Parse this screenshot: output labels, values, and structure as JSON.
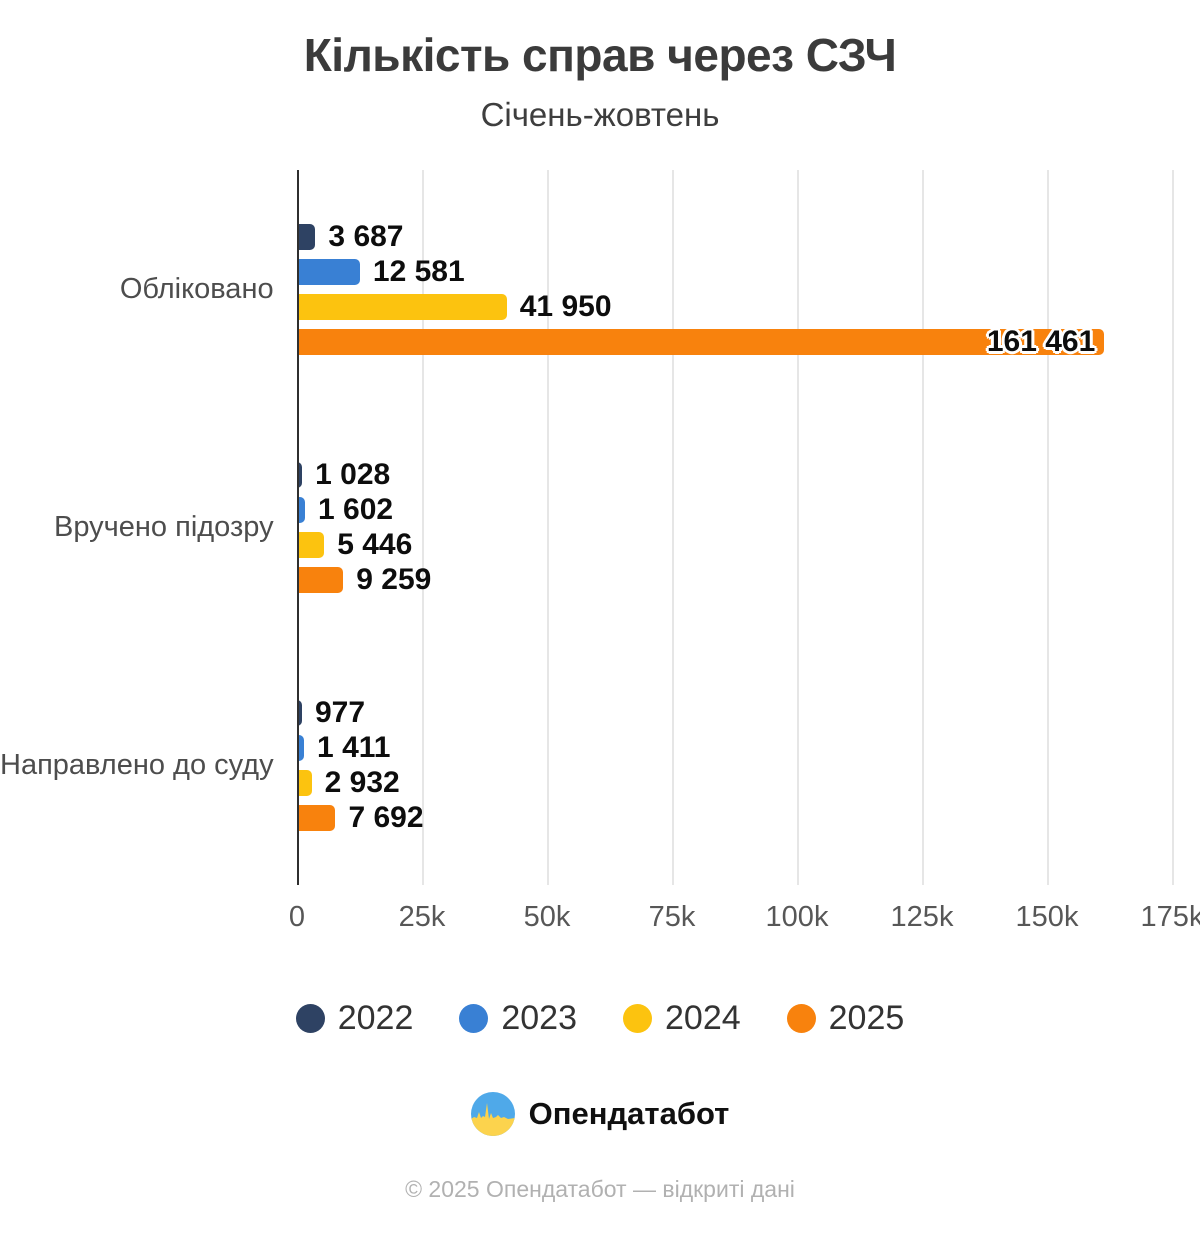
{
  "title": "Кількість справ через СЗЧ",
  "subtitle": "Січень-жовтень",
  "chart_data": {
    "type": "bar",
    "orientation": "horizontal",
    "title": "Кількість справ через СЗЧ",
    "subtitle": "Січень-жовтень",
    "categories": [
      "Обліковано",
      "Вручено підозру",
      "Направлено до суду"
    ],
    "series": [
      {
        "name": "2022",
        "color": "#2e4263",
        "values": [
          3687,
          1028,
          977
        ],
        "labels": [
          "3 687",
          "1 028",
          "977"
        ]
      },
      {
        "name": "2023",
        "color": "#3980d4",
        "values": [
          12581,
          1602,
          1411
        ],
        "labels": [
          "12 581",
          "1 602",
          "1 411"
        ]
      },
      {
        "name": "2024",
        "color": "#fcc30f",
        "values": [
          41950,
          5446,
          2932
        ],
        "labels": [
          "41 950",
          "5 446",
          "2 932"
        ]
      },
      {
        "name": "2025",
        "color": "#f8820d",
        "values": [
          161461,
          9259,
          7692
        ],
        "labels": [
          "161 461",
          "9 259",
          "7 692"
        ]
      }
    ],
    "xlim": [
      0,
      175000
    ],
    "x_ticks": [
      "0",
      "25k",
      "50k",
      "75k",
      "100k",
      "125k",
      "150k",
      "175k"
    ],
    "grid": true,
    "gridline_color": "#e6e6e6",
    "axis_color": "#2f2f2f",
    "legend_position": "bottom"
  },
  "footer": {
    "logo_icon": "opendatabot-logo-icon",
    "logo_text": "Опендатабот",
    "copyright": "© 2025 Опендатабот — відкриті дані"
  }
}
